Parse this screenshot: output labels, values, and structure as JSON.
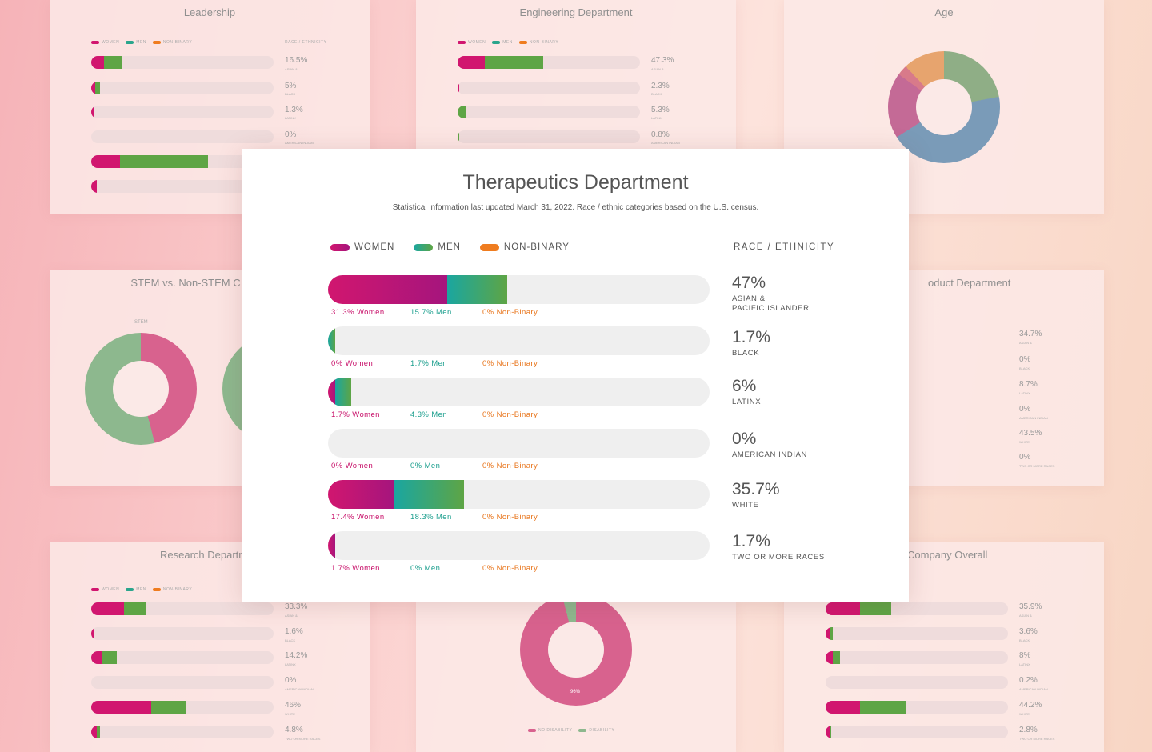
{
  "main": {
    "title": "Therapeutics Department",
    "subtitle": "Statistical information last updated March 31, 2022. Race / ethnic categories based on the U.S. census.",
    "legend": {
      "women": "WOMEN",
      "men": "MEN",
      "nonbinary": "NON-BINARY"
    },
    "race_header": "RACE / ETHNICITY",
    "colors": {
      "women": "#d1166f",
      "men": "#2aa58c",
      "nonbinary": "#ef7c1f",
      "track": "#efefef"
    }
  },
  "chart_data": {
    "type": "bar",
    "stacked": true,
    "title": "Therapeutics Department",
    "categories": [
      "ASIAN &\nPACIFIC ISLANDER",
      "BLACK",
      "LATINX",
      "AMERICAN INDIAN",
      "WHITE",
      "TWO OR MORE RACES"
    ],
    "totals": [
      "47%",
      "1.7%",
      "6%",
      "0%",
      "35.7%",
      "1.7%"
    ],
    "series": [
      {
        "name": "WOMEN",
        "values": [
          31.3,
          0,
          1.7,
          0,
          17.4,
          1.7
        ],
        "labels": [
          "31.3% Women",
          "0% Women",
          "1.7% Women",
          "0% Women",
          "17.4% Women",
          "1.7% Women"
        ]
      },
      {
        "name": "MEN",
        "values": [
          15.7,
          1.7,
          4.3,
          0,
          18.3,
          0
        ],
        "labels": [
          "15.7% Men",
          "1.7% Men",
          "4.3% Men",
          "0% Men",
          "18.3% Men",
          "0% Men"
        ]
      },
      {
        "name": "NON-BINARY",
        "values": [
          0,
          0,
          0,
          0,
          0,
          0
        ],
        "labels": [
          "0% Non-Binary",
          "0% Non-Binary",
          "0% Non-Binary",
          "0% Non-Binary",
          "0% Non-Binary",
          "0% Non-Binary"
        ]
      }
    ],
    "xlim": [
      0,
      100
    ]
  },
  "background": {
    "leadership_title": "Leadership",
    "engineering_title": "Engineering Department",
    "age_title": "Age",
    "stem_title": "STEM vs. Non-STEM C",
    "stem_label": "STEM",
    "product_title": "oduct Department",
    "research_title": "Research Departm",
    "company_title": "Company Overall",
    "leadership_vals": [
      "16.5%",
      "5%",
      "1.3%",
      "0%"
    ],
    "leadership_cats": [
      "ASIAN &",
      "BLACK",
      "LATINX",
      "AMERICAN INDIAN"
    ],
    "engineering_vals": [
      "47.3%",
      "2.3%",
      "5.3%",
      "0.8%"
    ],
    "engineering_cats": [
      "ASIAN &",
      "BLACK",
      "LATINX",
      "AMERICAN INDIAN"
    ],
    "product_vals": [
      "34.7%",
      "0%",
      "8.7%",
      "0%",
      "43.5%",
      "0%"
    ],
    "product_cats": [
      "ASIAN &",
      "BLACK",
      "LATINX",
      "AMERICAN INDIAN",
      "WHITE",
      "TWO OR MORE RACES"
    ],
    "research_vals": [
      "33.3%",
      "1.6%",
      "14.2%",
      "0%",
      "46%",
      "4.8%"
    ],
    "research_cats": [
      "ASIAN &",
      "BLACK",
      "LATINX",
      "AMERICAN INDIAN",
      "WHITE",
      "TWO OR MORE RACES"
    ],
    "company_vals": [
      "35.9%",
      "3.6%",
      "8%",
      "0.2%",
      "44.2%",
      "2.8%"
    ],
    "company_cats": [
      "ASIAN &",
      "BLACK",
      "LATINX",
      "AMERICAN INDIAN",
      "WHITE",
      "TWO OR MORE RACES"
    ],
    "stem_women": "46%\nWomen",
    "stem_men": "54%\nMen",
    "disability_value": "96%",
    "legend_nodis": "NO DISABILITY",
    "legend_dis": "DISABILITY"
  }
}
